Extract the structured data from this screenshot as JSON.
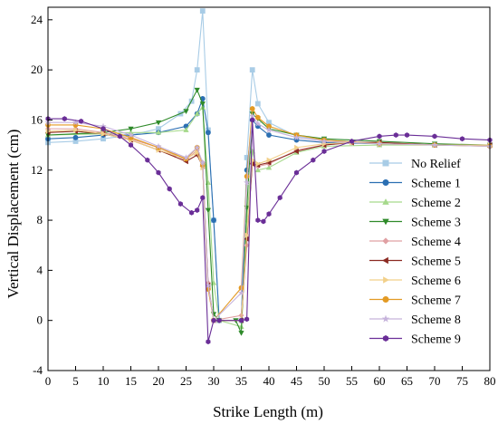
{
  "chart_data": {
    "type": "line",
    "xlabel": "Strike Length (m)",
    "ylabel": "Vertical Displacement (cm)",
    "xlim": [
      0,
      80
    ],
    "ylim": [
      -4,
      25
    ],
    "xticks": [
      0,
      5,
      10,
      15,
      20,
      25,
      30,
      35,
      40,
      45,
      50,
      55,
      60,
      65,
      70,
      75,
      80
    ],
    "yticks": [
      -4,
      0,
      4,
      8,
      12,
      16,
      20,
      24
    ],
    "grid": false,
    "legend_position": "right",
    "series": [
      {
        "name": "No Relief",
        "color": "#a8cce6",
        "marker": "square",
        "points": [
          [
            0,
            14.2
          ],
          [
            5,
            14.3
          ],
          [
            10,
            14.5
          ],
          [
            15,
            14.8
          ],
          [
            20,
            15.3
          ],
          [
            24,
            16.5
          ],
          [
            26,
            17.5
          ],
          [
            27,
            20.0
          ],
          [
            28,
            24.7
          ],
          [
            29,
            15.2
          ],
          [
            30,
            8.0
          ],
          [
            31,
            0.0
          ],
          [
            35,
            0.0
          ],
          [
            36,
            13.0
          ],
          [
            37,
            20.0
          ],
          [
            38,
            17.3
          ],
          [
            40,
            15.8
          ],
          [
            45,
            14.7
          ],
          [
            50,
            14.4
          ],
          [
            60,
            14.1
          ],
          [
            70,
            14.0
          ],
          [
            80,
            14.0
          ]
        ]
      },
      {
        "name": "Scheme 1",
        "color": "#2b6fb2",
        "marker": "circle",
        "points": [
          [
            0,
            14.5
          ],
          [
            5,
            14.6
          ],
          [
            10,
            14.8
          ],
          [
            15,
            14.8
          ],
          [
            20,
            15.0
          ],
          [
            25,
            15.5
          ],
          [
            27,
            16.5
          ],
          [
            28,
            17.7
          ],
          [
            29,
            15.0
          ],
          [
            30,
            8.0
          ],
          [
            31,
            0.0
          ],
          [
            35,
            0.0
          ],
          [
            36,
            12.0
          ],
          [
            37,
            16.0
          ],
          [
            38,
            15.5
          ],
          [
            40,
            14.8
          ],
          [
            45,
            14.4
          ],
          [
            50,
            14.2
          ],
          [
            60,
            14.1
          ],
          [
            70,
            14.0
          ],
          [
            80,
            14.0
          ]
        ]
      },
      {
        "name": "Scheme 2",
        "color": "#a6d98c",
        "marker": "triangle-up",
        "points": [
          [
            0,
            14.8
          ],
          [
            10,
            14.9
          ],
          [
            15,
            15.0
          ],
          [
            20,
            15.0
          ],
          [
            25,
            15.2
          ],
          [
            27,
            16.5
          ],
          [
            28,
            17.0
          ],
          [
            29,
            11.0
          ],
          [
            30,
            3.0
          ],
          [
            31,
            0.0
          ],
          [
            35,
            -0.5
          ],
          [
            36,
            8.0
          ],
          [
            37,
            13.5
          ],
          [
            38,
            12.0
          ],
          [
            40,
            12.2
          ],
          [
            45,
            13.4
          ],
          [
            50,
            13.9
          ],
          [
            60,
            14.0
          ],
          [
            70,
            14.0
          ],
          [
            80,
            14.0
          ]
        ]
      },
      {
        "name": "Scheme 3",
        "color": "#2f8a2a",
        "marker": "triangle-down",
        "points": [
          [
            0,
            14.8
          ],
          [
            10,
            15.0
          ],
          [
            15,
            15.3
          ],
          [
            20,
            15.8
          ],
          [
            25,
            16.7
          ],
          [
            27,
            18.4
          ],
          [
            28,
            17.3
          ],
          [
            29,
            8.8
          ],
          [
            30,
            0.5
          ],
          [
            31,
            0.0
          ],
          [
            34,
            0.0
          ],
          [
            35,
            -1.0
          ],
          [
            36,
            9.0
          ],
          [
            37,
            16.5
          ],
          [
            38,
            16.1
          ],
          [
            40,
            15.3
          ],
          [
            45,
            14.8
          ],
          [
            50,
            14.5
          ],
          [
            60,
            14.3
          ],
          [
            70,
            14.1
          ],
          [
            80,
            14.0
          ]
        ]
      },
      {
        "name": "Scheme 4",
        "color": "#e0a0a3",
        "marker": "diamond",
        "points": [
          [
            0,
            15.3
          ],
          [
            5,
            15.3
          ],
          [
            10,
            15.0
          ],
          [
            15,
            14.5
          ],
          [
            20,
            13.8
          ],
          [
            23,
            13.2
          ],
          [
            25,
            12.8
          ],
          [
            27,
            13.6
          ],
          [
            28,
            12.6
          ],
          [
            29,
            3.0
          ],
          [
            30,
            0.0
          ],
          [
            35,
            0.4
          ],
          [
            36,
            6.0
          ],
          [
            37,
            12.6
          ],
          [
            38,
            12.3
          ],
          [
            40,
            12.5
          ],
          [
            45,
            13.6
          ],
          [
            50,
            14.0
          ],
          [
            55,
            14.2
          ],
          [
            60,
            14.2
          ],
          [
            70,
            14.0
          ],
          [
            80,
            14.0
          ]
        ]
      },
      {
        "name": "Scheme 5",
        "color": "#8b2a22",
        "marker": "triangle-left",
        "points": [
          [
            0,
            15.0
          ],
          [
            5,
            15.1
          ],
          [
            10,
            14.9
          ],
          [
            15,
            14.4
          ],
          [
            20,
            13.6
          ],
          [
            25,
            12.7
          ],
          [
            27,
            13.2
          ],
          [
            28,
            12.3
          ],
          [
            29,
            2.8
          ],
          [
            30,
            0.0
          ],
          [
            35,
            0.0
          ],
          [
            36,
            6.5
          ],
          [
            37,
            12.5
          ],
          [
            38,
            12.4
          ],
          [
            40,
            12.6
          ],
          [
            45,
            13.5
          ],
          [
            50,
            14.0
          ],
          [
            55,
            14.2
          ],
          [
            60,
            14.2
          ],
          [
            70,
            14.0
          ],
          [
            80,
            14.0
          ]
        ]
      },
      {
        "name": "Scheme 6",
        "color": "#f2d08a",
        "marker": "triangle-right",
        "points": [
          [
            0,
            15.1
          ],
          [
            5,
            15.2
          ],
          [
            10,
            14.9
          ],
          [
            15,
            14.4
          ],
          [
            20,
            13.6
          ],
          [
            25,
            12.9
          ],
          [
            27,
            13.4
          ],
          [
            28,
            12.2
          ],
          [
            29,
            2.5
          ],
          [
            30,
            0.0
          ],
          [
            35,
            0.0
          ],
          [
            36,
            6.8
          ],
          [
            37,
            12.8
          ],
          [
            38,
            12.5
          ],
          [
            40,
            12.8
          ],
          [
            45,
            13.8
          ],
          [
            50,
            14.1
          ],
          [
            55,
            14.2
          ],
          [
            60,
            14.1
          ],
          [
            70,
            14.0
          ],
          [
            80,
            14.0
          ]
        ]
      },
      {
        "name": "Scheme 7",
        "color": "#e39a24",
        "marker": "circle",
        "points": [
          [
            0,
            15.6
          ],
          [
            5,
            15.6
          ],
          [
            10,
            15.3
          ],
          [
            15,
            14.6
          ],
          [
            20,
            13.8
          ],
          [
            25,
            12.9
          ],
          [
            27,
            13.8
          ],
          [
            28,
            12.4
          ],
          [
            29,
            2.5
          ],
          [
            30,
            0.0
          ],
          [
            35,
            2.6
          ],
          [
            36,
            11.5
          ],
          [
            37,
            16.9
          ],
          [
            38,
            16.2
          ],
          [
            40,
            15.5
          ],
          [
            45,
            14.8
          ],
          [
            50,
            14.4
          ],
          [
            60,
            14.1
          ],
          [
            70,
            14.0
          ],
          [
            80,
            13.9
          ]
        ]
      },
      {
        "name": "Scheme 8",
        "color": "#c6b3db",
        "marker": "star",
        "points": [
          [
            0,
            15.8
          ],
          [
            5,
            15.8
          ],
          [
            10,
            15.5
          ],
          [
            15,
            14.8
          ],
          [
            20,
            13.9
          ],
          [
            25,
            13.0
          ],
          [
            27,
            13.8
          ],
          [
            28,
            12.6
          ],
          [
            29,
            2.8
          ],
          [
            30,
            0.0
          ],
          [
            35,
            2.2
          ],
          [
            36,
            11.0
          ],
          [
            37,
            16.3
          ],
          [
            38,
            15.7
          ],
          [
            40,
            15.2
          ],
          [
            45,
            14.6
          ],
          [
            50,
            14.3
          ],
          [
            60,
            14.1
          ],
          [
            70,
            14.0
          ],
          [
            80,
            13.9
          ]
        ]
      },
      {
        "name": "Scheme 9",
        "color": "#6a2e97",
        "marker": "hexagon",
        "points": [
          [
            0,
            16.1
          ],
          [
            3,
            16.1
          ],
          [
            6,
            15.9
          ],
          [
            10,
            15.3
          ],
          [
            13,
            14.7
          ],
          [
            15,
            14.0
          ],
          [
            18,
            12.8
          ],
          [
            20,
            11.8
          ],
          [
            22,
            10.5
          ],
          [
            24,
            9.3
          ],
          [
            26,
            8.6
          ],
          [
            27,
            8.8
          ],
          [
            28,
            9.8
          ],
          [
            29,
            -1.7
          ],
          [
            30,
            0.0
          ],
          [
            31,
            0.0
          ],
          [
            35,
            0.0
          ],
          [
            36,
            0.1
          ],
          [
            37,
            16.0
          ],
          [
            38,
            8.0
          ],
          [
            39,
            7.9
          ],
          [
            40,
            8.5
          ],
          [
            42,
            9.8
          ],
          [
            45,
            11.8
          ],
          [
            48,
            12.8
          ],
          [
            50,
            13.5
          ],
          [
            55,
            14.3
          ],
          [
            60,
            14.7
          ],
          [
            63,
            14.8
          ],
          [
            65,
            14.8
          ],
          [
            70,
            14.7
          ],
          [
            75,
            14.5
          ],
          [
            80,
            14.4
          ]
        ]
      }
    ]
  }
}
